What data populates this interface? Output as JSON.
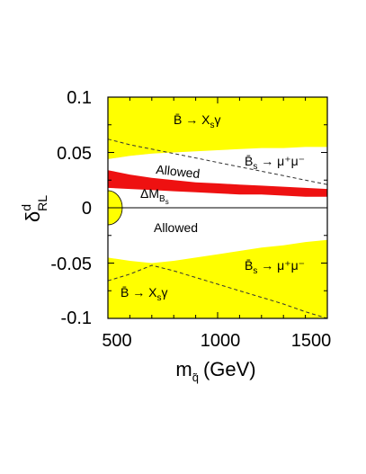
{
  "chart_data": {
    "type": "area",
    "xlabel": "m",
    "xlabel_sub": "q̃",
    "xlabel_unit": "(GeV)",
    "ylabel": "δ",
    "ylabel_sup": "d",
    "ylabel_sub": "RL",
    "xlim": [
      500,
      1500
    ],
    "ylim": [
      -0.1,
      0.1
    ],
    "x_ticks": [
      500,
      1000,
      1500
    ],
    "x_tick_labels": [
      "500",
      "1000",
      "1500"
    ],
    "y_ticks": [
      0.1,
      0.05,
      0,
      -0.05,
      -0.1
    ],
    "y_tick_labels": [
      "0.1",
      "0.05",
      "0",
      "-0.05",
      "-0.1"
    ],
    "grid": false,
    "colors": {
      "bsgamma_excluded": "#ffff00",
      "bsmumu_excluded": "#ffb300",
      "delta_mbs": "#ee1111",
      "allowed": "#ffffff",
      "dashed": "#333333"
    },
    "x": [
      500,
      600,
      700,
      800,
      900,
      1000,
      1100,
      1200,
      1300,
      1400,
      1500
    ],
    "series": [
      {
        "key": "bsgamma_upper_dashed",
        "values": [
          0.062,
          0.057,
          0.053,
          0.049,
          0.045,
          0.041,
          0.037,
          0.033,
          0.029,
          0.025,
          0.021
        ]
      },
      {
        "key": "bsmumu_upper",
        "values": [
          0.044,
          0.047,
          0.049,
          0.05,
          0.051,
          0.052,
          0.053,
          0.054,
          0.054,
          0.055,
          0.055
        ]
      },
      {
        "key": "delta_mbs_upper",
        "values": [
          0.034,
          0.03,
          0.027,
          0.025,
          0.023,
          0.022,
          0.021,
          0.02,
          0.019,
          0.018,
          0.017
        ]
      },
      {
        "key": "delta_mbs_lower",
        "values": [
          0.018,
          0.017,
          0.016,
          0.015,
          0.014,
          0.013,
          0.012,
          0.012,
          0.011,
          0.01,
          0.01
        ]
      },
      {
        "key": "bsmumu_lower",
        "values": [
          -0.045,
          -0.048,
          -0.05,
          -0.048,
          -0.045,
          -0.042,
          -0.039,
          -0.036,
          -0.034,
          -0.031,
          -0.029
        ]
      },
      {
        "key": "bsgamma_lower_dashed",
        "values": [
          -0.066,
          -0.06,
          -0.052,
          -0.057,
          -0.063,
          -0.069,
          -0.075,
          -0.081,
          -0.087,
          -0.094,
          -0.1
        ]
      }
    ],
    "annotations": {
      "bsgamma_top": "B̄ → X",
      "bsgamma_top_sub": "s",
      "bsgamma_top_tail": "γ",
      "bsmumu_top": "B̄",
      "bsmumu_top_sub": "s",
      "bsmumu_top_tail": " → μ⁺μ⁻",
      "allowed_top": "Allowed",
      "delta_mbs": "ΔM",
      "delta_mbs_sub": "B",
      "delta_mbs_subsub": "s",
      "allowed_bottom": "Allowed",
      "bsmumu_bottom": "B̄",
      "bsmumu_bottom_sub": "s",
      "bsmumu_bottom_tail": " → μ⁺μ⁻",
      "bsgamma_bottom": "B̄ → X",
      "bsgamma_bottom_sub": "s",
      "bsgamma_bottom_tail": "γ"
    }
  }
}
